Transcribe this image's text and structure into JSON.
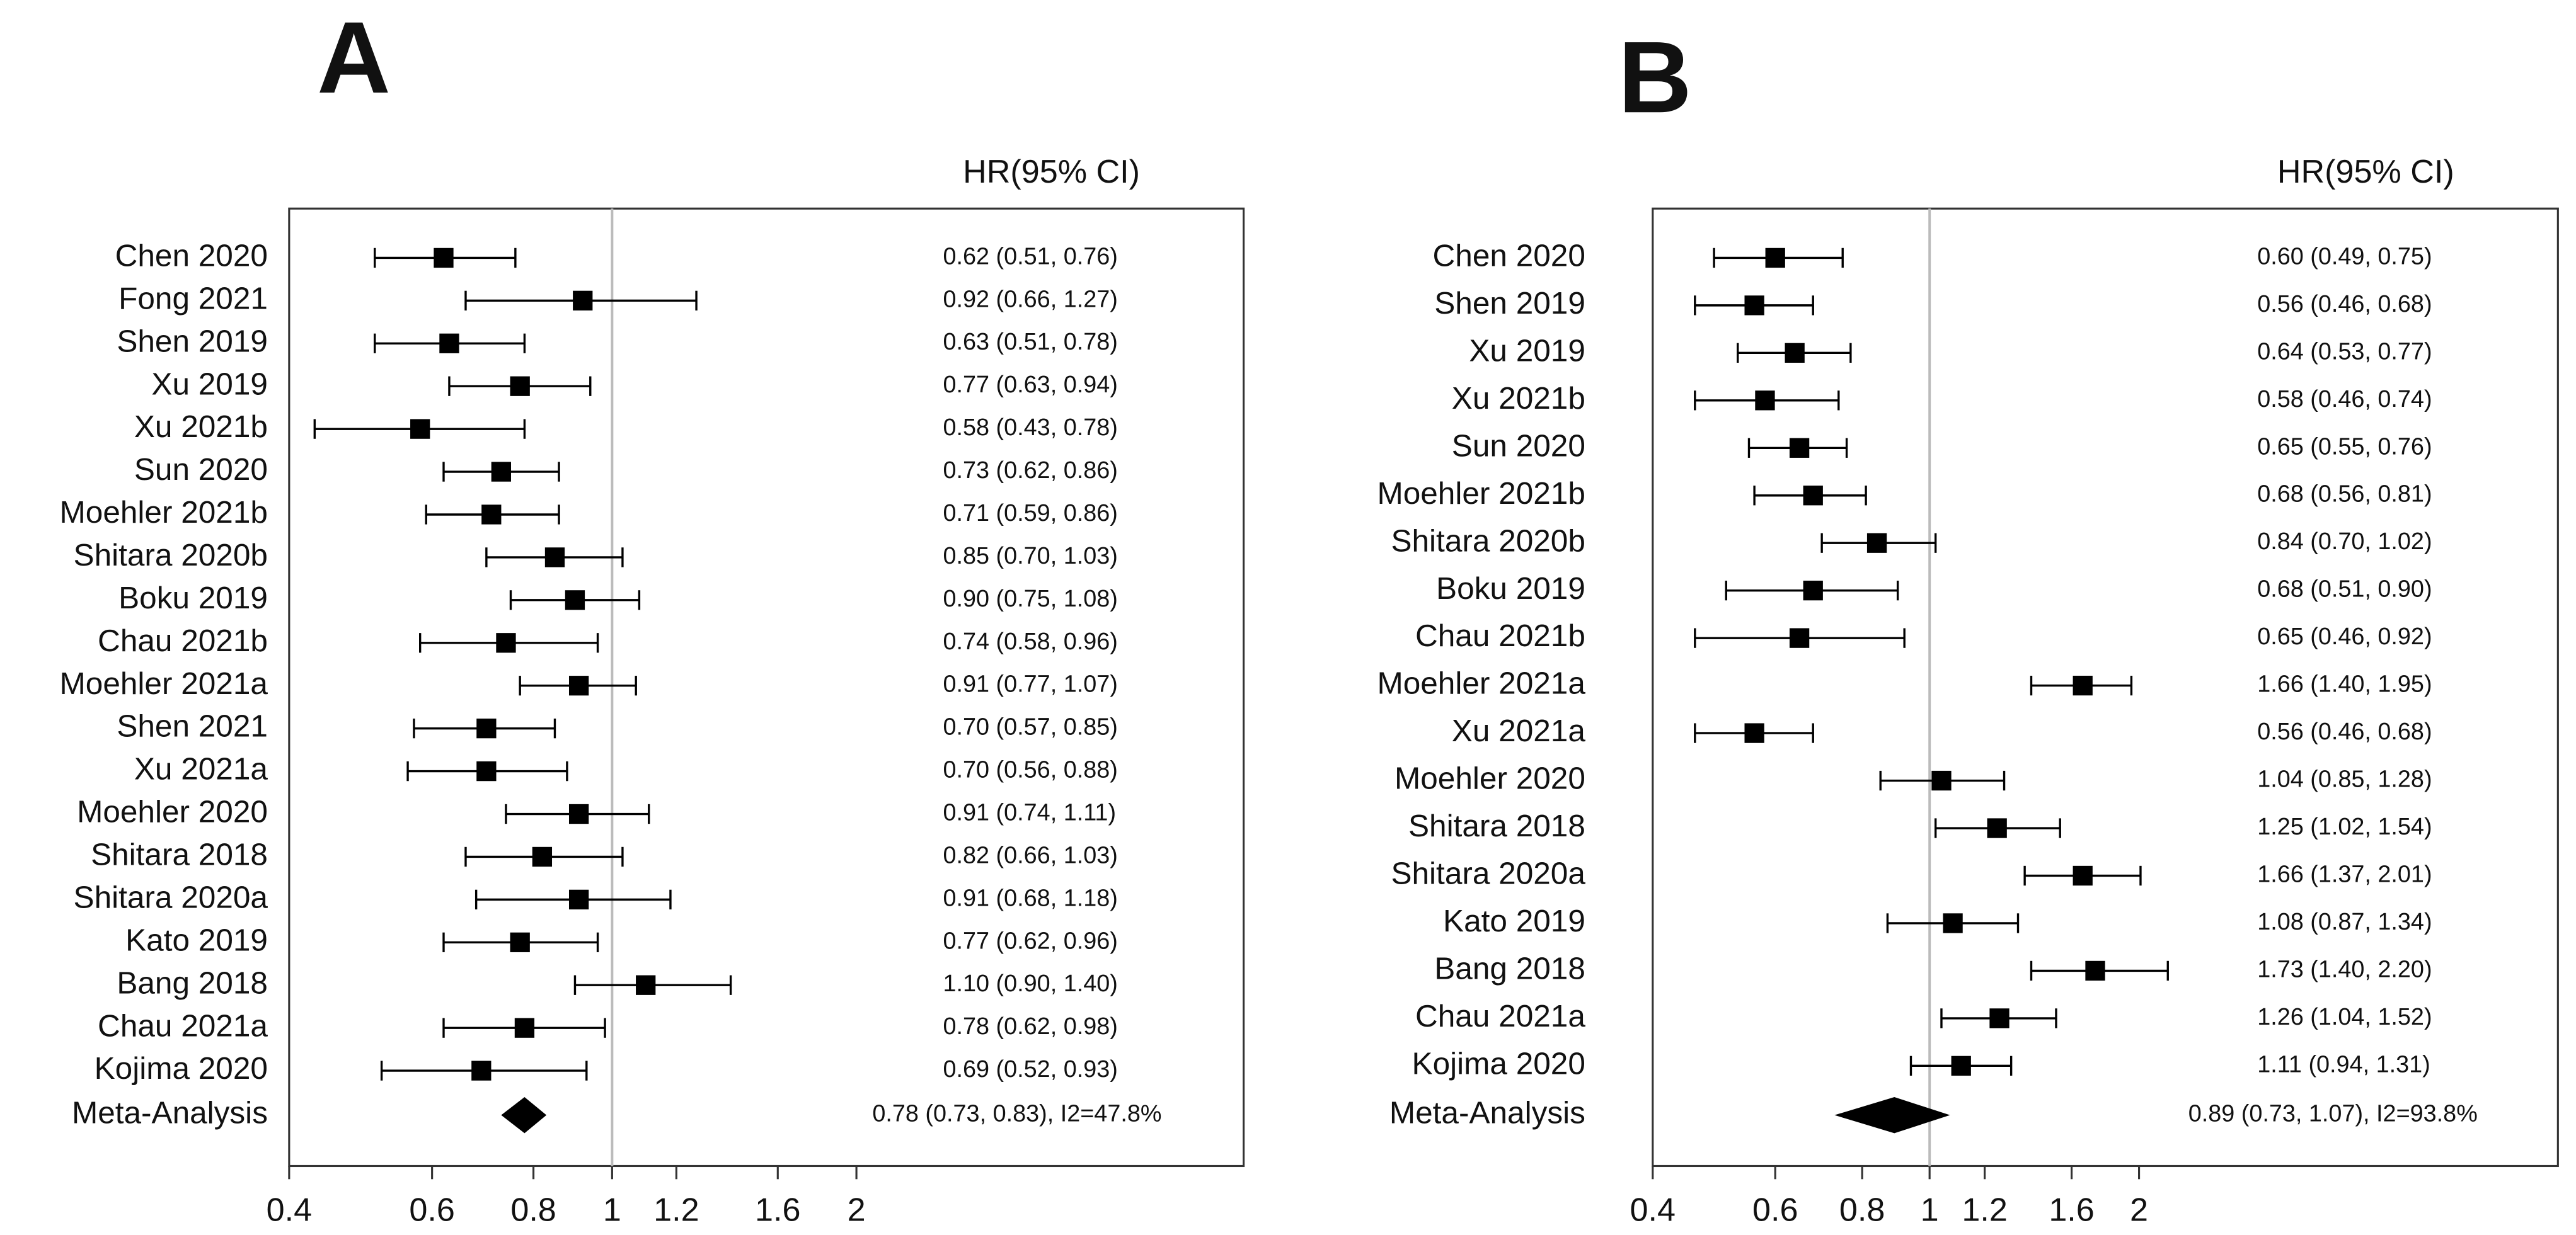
{
  "chart_data": [
    {
      "type": "forest",
      "panel_label": "A",
      "header": "HR(95% CI)",
      "log_x": true,
      "color": "#000000",
      "ref_color": "#bbbbbb",
      "ref_line": 1,
      "xlim": [
        0.4,
        6
      ],
      "xticks": [
        0.4,
        0.6,
        0.8,
        1,
        1.2,
        1.6,
        2
      ],
      "categories": [
        "Chen 2020",
        "Fong 2021",
        "Shen 2019",
        "Xu 2019",
        "Xu 2021b",
        "Sun 2020",
        "Moehler 2021b",
        "Shitara 2020b",
        "Boku 2019",
        "Chau 2021b",
        "Moehler 2021a",
        "Shen 2021",
        "Xu 2021a",
        "Moehler 2020",
        "Shitara 2018",
        "Shitara 2020a",
        "Kato 2019",
        "Bang 2018",
        "Chau 2021a",
        "Kojima 2020"
      ],
      "values": [
        0.62,
        0.92,
        0.63,
        0.77,
        0.58,
        0.73,
        0.71,
        0.85,
        0.9,
        0.74,
        0.91,
        0.7,
        0.7,
        0.91,
        0.82,
        0.91,
        0.77,
        1.1,
        0.78,
        0.69
      ],
      "ci_lower": [
        0.51,
        0.66,
        0.51,
        0.63,
        0.43,
        0.62,
        0.59,
        0.7,
        0.75,
        0.58,
        0.77,
        0.57,
        0.56,
        0.74,
        0.66,
        0.68,
        0.62,
        0.9,
        0.62,
        0.52
      ],
      "ci_upper": [
        0.76,
        1.27,
        0.78,
        0.94,
        0.78,
        0.86,
        0.86,
        1.03,
        1.08,
        0.96,
        1.07,
        0.85,
        0.88,
        1.11,
        1.03,
        1.18,
        0.96,
        1.4,
        0.98,
        0.93
      ],
      "value_labels": [
        "0.62 (0.51, 0.76)",
        "0.92 (0.66, 1.27)",
        "0.63 (0.51, 0.78)",
        "0.77 (0.63, 0.94)",
        "0.58 (0.43, 0.78)",
        "0.73 (0.62, 0.86)",
        "0.71 (0.59, 0.86)",
        "0.85 (0.70, 1.03)",
        "0.90 (0.75, 1.08)",
        "0.74 (0.58, 0.96)",
        "0.91 (0.77, 1.07)",
        "0.70 (0.57, 0.85)",
        "0.70 (0.56, 0.88)",
        "0.91 (0.74, 1.11)",
        "0.82 (0.66, 1.03)",
        "0.91 (0.68, 1.18)",
        "0.77 (0.62, 0.96)",
        "1.10 (0.90, 1.40)",
        "0.78 (0.62, 0.98)",
        "0.69 (0.52, 0.93)"
      ],
      "summary": {
        "label": "Meta-Analysis",
        "value": 0.78,
        "lower": 0.73,
        "upper": 0.83,
        "value_label": "0.78 (0.73, 0.83), I2=47.8%"
      }
    },
    {
      "type": "forest",
      "panel_label": "B",
      "header": "HR(95% CI)",
      "log_x": true,
      "color": "#000000",
      "ref_color": "#bbbbbb",
      "ref_line": 1,
      "xlim": [
        0.4,
        8
      ],
      "xticks": [
        0.4,
        0.6,
        0.8,
        1,
        1.2,
        1.6,
        2
      ],
      "categories": [
        "Chen 2020",
        "Shen 2019",
        "Xu 2019",
        "Xu 2021b",
        "Sun 2020",
        "Moehler 2021b",
        "Shitara 2020b",
        "Boku 2019",
        "Chau 2021b",
        "Moehler 2021a",
        "Xu 2021a",
        "Moehler 2020",
        "Shitara 2018",
        "Shitara 2020a",
        "Kato 2019",
        "Bang 2018",
        "Chau 2021a",
        "Kojima 2020"
      ],
      "values": [
        0.6,
        0.56,
        0.64,
        0.58,
        0.65,
        0.68,
        0.84,
        0.68,
        0.65,
        1.66,
        0.56,
        1.04,
        1.25,
        1.66,
        1.08,
        1.73,
        1.26,
        1.11
      ],
      "ci_lower": [
        0.49,
        0.46,
        0.53,
        0.46,
        0.55,
        0.56,
        0.7,
        0.51,
        0.46,
        1.4,
        0.46,
        0.85,
        1.02,
        1.37,
        0.87,
        1.4,
        1.04,
        0.94
      ],
      "ci_upper": [
        0.75,
        0.68,
        0.77,
        0.74,
        0.76,
        0.81,
        1.02,
        0.9,
        0.92,
        1.95,
        0.68,
        1.28,
        1.54,
        2.01,
        1.34,
        2.2,
        1.52,
        1.31
      ],
      "value_labels": [
        "0.60 (0.49, 0.75)",
        "0.56 (0.46, 0.68)",
        "0.64 (0.53, 0.77)",
        "0.58 (0.46, 0.74)",
        "0.65 (0.55, 0.76)",
        "0.68 (0.56, 0.81)",
        "0.84 (0.70, 1.02)",
        "0.68 (0.51, 0.90)",
        "0.65 (0.46, 0.92)",
        "1.66 (1.40, 1.95)",
        "0.56 (0.46, 0.68)",
        "1.04 (0.85, 1.28)",
        "1.25 (1.02, 1.54)",
        "1.66 (1.37, 2.01)",
        "1.08 (0.87, 1.34)",
        "1.73 (1.40, 2.20)",
        "1.26 (1.04, 1.52)",
        "1.11 (0.94, 1.31)"
      ],
      "summary": {
        "label": "Meta-Analysis",
        "value": 0.89,
        "lower": 0.73,
        "upper": 1.07,
        "value_label": "0.89 (0.73, 1.07), I2=93.8%"
      }
    }
  ]
}
